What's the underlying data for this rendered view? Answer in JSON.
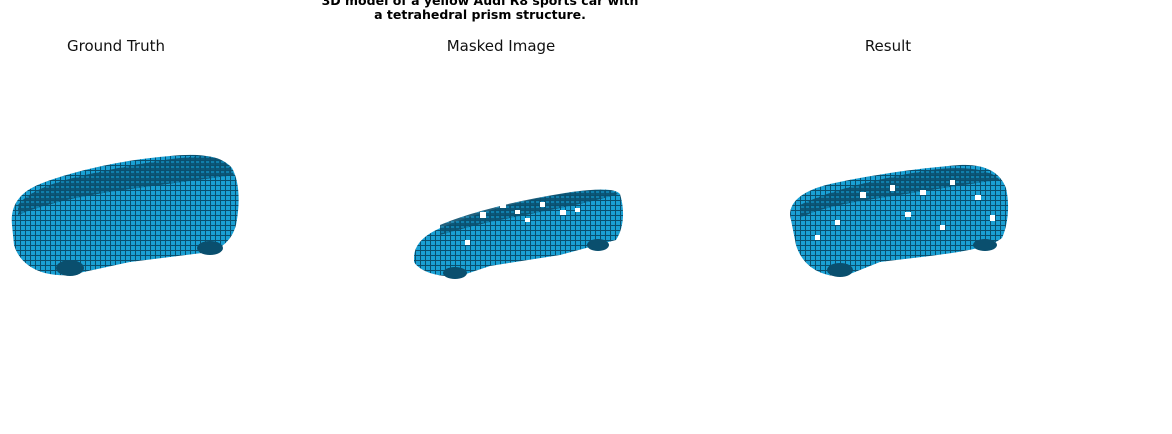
{
  "caption": {
    "line1": "3D model of a yellow Audi R8 sports car with",
    "line2": "a tetrahedral prism structure."
  },
  "panels": [
    {
      "title": "Ground Truth"
    },
    {
      "title": "Masked Image"
    },
    {
      "title": "Result"
    }
  ],
  "colors": {
    "voxel_light": "#1aa0d4",
    "voxel_mid": "#0f7aa6",
    "voxel_dark": "#0a4f6e",
    "voxel_edge": "#06303f"
  }
}
